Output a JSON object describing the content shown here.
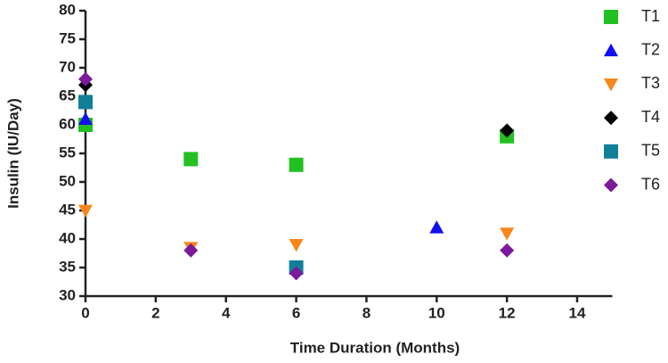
{
  "chart_data": {
    "type": "scatter",
    "x_label": "Time Duration (Months)",
    "y_label": "Insulin (IU/Day)",
    "xlim": [
      0,
      15
    ],
    "xticks": [
      0,
      2,
      4,
      6,
      8,
      10,
      12,
      14
    ],
    "ylim": [
      30,
      80
    ],
    "yticks": [
      30,
      35,
      40,
      45,
      50,
      55,
      60,
      65,
      70,
      75,
      80
    ],
    "series": [
      {
        "name": "T1",
        "color": "#22c022",
        "marker": "square",
        "x": [
          0,
          3,
          6,
          12
        ],
        "values": [
          60,
          54,
          53,
          58
        ]
      },
      {
        "name": "T2",
        "color": "#1010f0",
        "marker": "triangle",
        "x": [
          0,
          10
        ],
        "values": [
          61,
          42
        ]
      },
      {
        "name": "T3",
        "color": "#f7861b",
        "marker": "triangle-down",
        "x": [
          0,
          3,
          6,
          12
        ],
        "values": [
          45,
          38.5,
          39,
          41
        ]
      },
      {
        "name": "T4",
        "color": "#000000",
        "marker": "diamond",
        "x": [
          0,
          12
        ],
        "values": [
          67,
          59
        ]
      },
      {
        "name": "T5",
        "color": "#0f8098",
        "marker": "square",
        "x": [
          0,
          6
        ],
        "values": [
          64,
          35
        ]
      },
      {
        "name": "T6",
        "color": "#7b1a9c",
        "marker": "diamond",
        "x": [
          0,
          3,
          6,
          12
        ],
        "values": [
          68,
          38,
          34,
          38
        ]
      }
    ]
  }
}
